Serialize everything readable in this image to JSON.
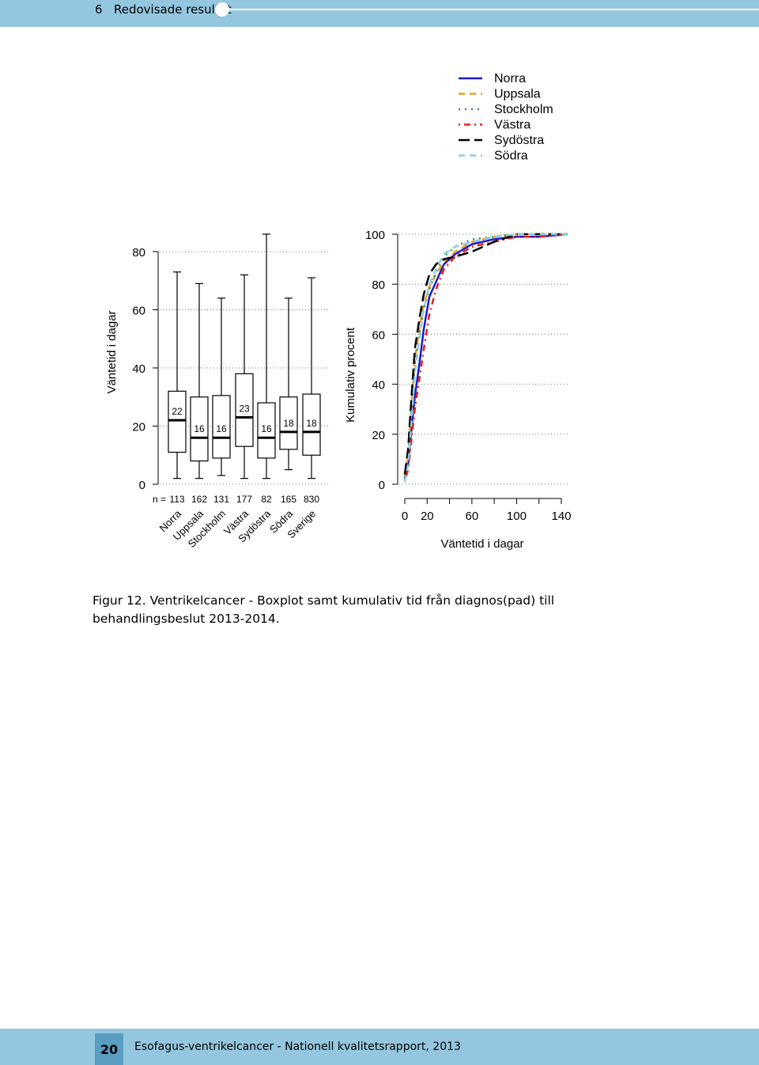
{
  "header": {
    "chapter_number": "6",
    "chapter_title": "Redovisade resultat"
  },
  "legend": {
    "items": [
      {
        "label": "Norra",
        "color": "#1a1acc",
        "style": "solid"
      },
      {
        "label": "Uppsala",
        "color": "#f39a1f",
        "style": "dashed"
      },
      {
        "label": "Stockholm",
        "color": "#2a9a3a",
        "style": "dotted"
      },
      {
        "label": "Västra",
        "color": "#e0201a",
        "style": "dotdash"
      },
      {
        "label": "Sydöstra",
        "color": "#000000",
        "style": "longdash"
      },
      {
        "label": "Södra",
        "color": "#8ecbea",
        "style": "dashed"
      }
    ]
  },
  "chart_data": [
    {
      "type": "box",
      "ylabel": "Väntetid i dagar",
      "ylim": [
        0,
        80
      ],
      "yticks": [
        0,
        20,
        40,
        60,
        80
      ],
      "n_prefix": "n =",
      "categories": [
        "Norra",
        "Uppsala",
        "Stockholm",
        "Västra",
        "Sydöstra",
        "Södra",
        "Sverige"
      ],
      "n": [
        "113",
        "162",
        "131",
        "177",
        "82",
        "165",
        "830"
      ],
      "median_labels": [
        "22",
        "16",
        "16",
        "23",
        "16",
        "18",
        "18"
      ],
      "boxes": [
        {
          "min": 2,
          "q1": 11,
          "median": 22,
          "q3": 32,
          "max": 73
        },
        {
          "min": 2,
          "q1": 8,
          "median": 16,
          "q3": 30,
          "max": 69
        },
        {
          "min": 3,
          "q1": 9,
          "median": 16,
          "q3": 30.5,
          "max": 64
        },
        {
          "min": 2,
          "q1": 13,
          "median": 23,
          "q3": 38,
          "max": 72
        },
        {
          "min": 2,
          "q1": 9,
          "median": 16,
          "q3": 28,
          "max": 86
        },
        {
          "min": 5,
          "q1": 12,
          "median": 18,
          "q3": 30,
          "max": 64
        },
        {
          "min": 2,
          "q1": 10,
          "median": 18,
          "q3": 31,
          "max": 71
        }
      ],
      "grid": true
    },
    {
      "type": "line",
      "ylabel": "Kumulativ procent",
      "xlabel": "Väntetid i dagar",
      "ylim": [
        0,
        100
      ],
      "yticks": [
        0,
        20,
        40,
        60,
        80,
        100
      ],
      "xlim": [
        0,
        140
      ],
      "xticks": [
        0,
        20,
        60,
        100,
        140
      ],
      "grid": true,
      "series": [
        {
          "name": "Norra",
          "x": [
            0,
            3,
            6,
            9,
            13,
            17,
            22,
            28,
            35,
            45,
            60,
            80,
            100,
            120,
            145
          ],
          "y": [
            2,
            8,
            22,
            35,
            48,
            62,
            75,
            81,
            88,
            92,
            96,
            98,
            99,
            99,
            100
          ]
        },
        {
          "name": "Uppsala",
          "x": [
            0,
            3,
            6,
            9,
            13,
            17,
            22,
            28,
            35,
            45,
            60,
            80,
            100,
            120,
            145
          ],
          "y": [
            3,
            12,
            32,
            50,
            62,
            72,
            79,
            84,
            89,
            93,
            97,
            99,
            100,
            100,
            100
          ]
        },
        {
          "name": "Stockholm",
          "x": [
            0,
            3,
            6,
            9,
            13,
            17,
            22,
            28,
            35,
            45,
            60,
            80,
            100,
            120,
            145
          ],
          "y": [
            3,
            11,
            30,
            48,
            60,
            70,
            78,
            85,
            91,
            95,
            98,
            99,
            100,
            100,
            100
          ]
        },
        {
          "name": "Västra",
          "x": [
            0,
            3,
            6,
            9,
            13,
            17,
            22,
            28,
            35,
            45,
            60,
            80,
            100,
            120,
            145
          ],
          "y": [
            1,
            6,
            18,
            30,
            42,
            54,
            68,
            78,
            86,
            91,
            95,
            97,
            99,
            99,
            100
          ]
        },
        {
          "name": "Sydöstra",
          "x": [
            0,
            3,
            6,
            9,
            13,
            17,
            22,
            28,
            35,
            45,
            60,
            80,
            100,
            120,
            145
          ],
          "y": [
            4,
            14,
            35,
            54,
            66,
            76,
            84,
            88,
            90,
            91,
            93,
            97,
            100,
            100,
            100
          ]
        },
        {
          "name": "Södra",
          "x": [
            0,
            3,
            6,
            9,
            13,
            17,
            22,
            28,
            35,
            45,
            60,
            80,
            100,
            120,
            145
          ],
          "y": [
            1,
            8,
            25,
            44,
            58,
            70,
            80,
            86,
            92,
            95,
            97,
            99,
            100,
            100,
            100
          ]
        }
      ]
    }
  ],
  "caption": {
    "label": "Figur 12.",
    "text": "Ventrikelcancer - Boxplot samt kumulativ tid från diagnos(pad) till behandlingsbeslut 2013-2014."
  },
  "footer": {
    "page_number": "20",
    "report_title": "Esofagus-ventrikelcancer - Nationell kvalitetsrapport, 2013"
  }
}
